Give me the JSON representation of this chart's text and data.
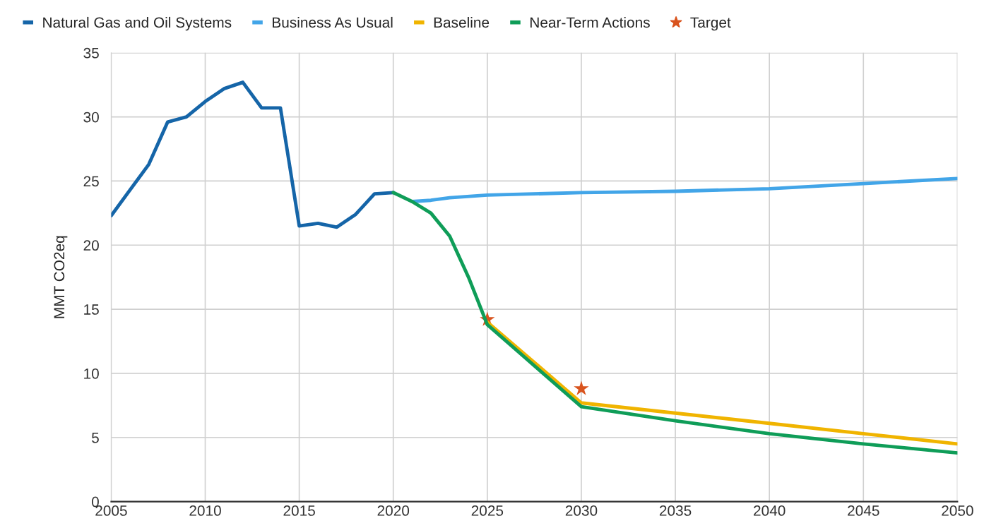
{
  "chart_data": {
    "type": "line",
    "ylabel": "MMT CO2eq",
    "xlim": [
      2005,
      2050
    ],
    "xticks": [
      2005,
      2010,
      2015,
      2020,
      2025,
      2030,
      2035,
      2040,
      2045,
      2050
    ],
    "ylim": [
      0,
      35
    ],
    "yticks": [
      0,
      5,
      10,
      15,
      20,
      25,
      30,
      35
    ],
    "grid": true,
    "legend": "top",
    "line_style": "solid",
    "series": [
      {
        "name": "Natural Gas and Oil Systems",
        "color": "#1565a8",
        "x": [
          2005,
          2006,
          2007,
          2008,
          2009,
          2010,
          2011,
          2012,
          2013,
          2014,
          2015,
          2016,
          2017,
          2018,
          2019,
          2020
        ],
        "values": [
          22.3,
          24.3,
          26.3,
          29.6,
          30.0,
          31.2,
          32.2,
          32.7,
          30.7,
          30.7,
          21.5,
          21.7,
          21.4,
          22.4,
          24.0,
          24.1
        ]
      },
      {
        "name": "Business As Usual",
        "color": "#42a5e8",
        "x": [
          2021,
          2022,
          2023,
          2025,
          2030,
          2035,
          2040,
          2045,
          2050
        ],
        "values": [
          23.4,
          23.5,
          23.7,
          23.9,
          24.1,
          24.2,
          24.4,
          24.8,
          25.2
        ]
      },
      {
        "name": "Baseline",
        "color": "#f0b400",
        "x": [
          2025,
          2030,
          2035,
          2040,
          2045,
          2050
        ],
        "values": [
          14.0,
          7.7,
          6.9,
          6.1,
          5.3,
          4.5
        ]
      },
      {
        "name": "Near-Term Actions",
        "color": "#0f9d58",
        "x": [
          2020,
          2021,
          2022,
          2023,
          2024,
          2025,
          2030,
          2035,
          2040,
          2045,
          2050
        ],
        "values": [
          24.1,
          23.4,
          22.5,
          20.7,
          17.5,
          13.8,
          7.4,
          6.3,
          5.3,
          4.5,
          3.8
        ]
      },
      {
        "name": "Target",
        "type": "scatter",
        "marker": "star",
        "color": "#d9541e",
        "x": [
          2025,
          2030
        ],
        "values": [
          14.2,
          8.8
        ]
      }
    ]
  }
}
